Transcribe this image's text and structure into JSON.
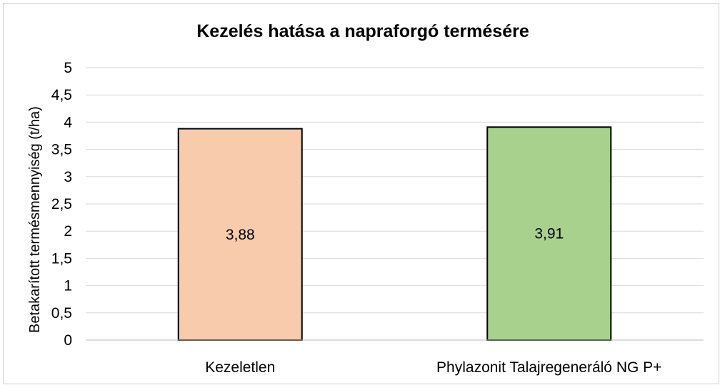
{
  "chart_data": {
    "type": "bar",
    "title": "Kezelés hatása a napraforgó termésére",
    "xlabel": "",
    "ylabel": "Betakarított termésmennyiség  (t/ha)",
    "categories": [
      "Kezeletlen",
      "Phylazonit Talajregeneráló NG P+"
    ],
    "values": [
      3.88,
      3.91
    ],
    "data_labels": [
      "3,88",
      "3,91"
    ],
    "colors": [
      "#f8cbad",
      "#a9d18e"
    ],
    "ylim": [
      0,
      5
    ],
    "yticks": [
      0,
      0.5,
      1,
      1.5,
      2,
      2.5,
      3,
      3.5,
      4,
      4.5,
      5
    ],
    "ytick_labels": [
      "0",
      "0,5",
      "1",
      "1,5",
      "2",
      "2,5",
      "3",
      "3,5",
      "4",
      "4,5",
      "5"
    ],
    "grid": true,
    "legend": "none"
  }
}
